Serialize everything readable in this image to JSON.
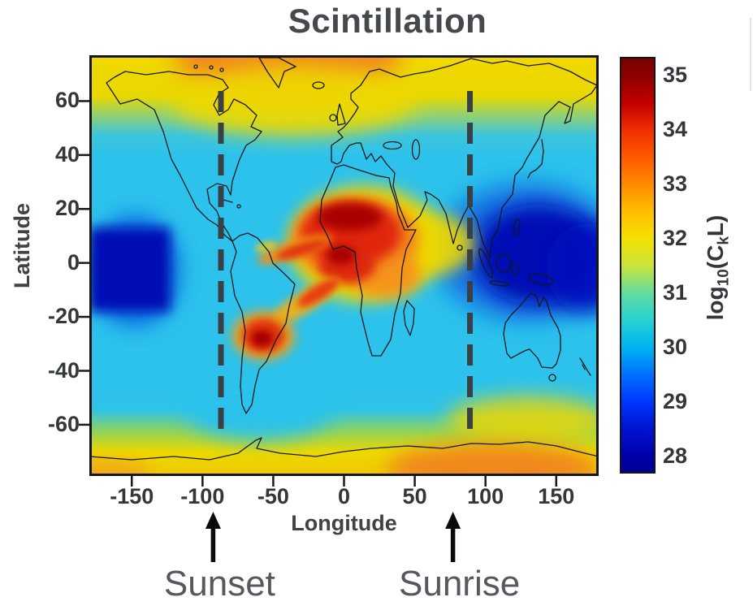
{
  "chart_data": {
    "type": "heatmap",
    "title": "Scintillation",
    "xlabel": "Longitude",
    "ylabel": "Latitude",
    "xlim": [
      -180,
      180
    ],
    "ylim": [
      -79,
      77
    ],
    "x_ticks": [
      -150,
      -100,
      -50,
      0,
      50,
      100,
      150
    ],
    "y_ticks": [
      60,
      40,
      20,
      0,
      -20,
      -40,
      -60
    ],
    "grid": false,
    "background": {
      "color": "#2CC2EC",
      "value": 30.3
    },
    "style": {
      "title_color": "#45484D",
      "tick_color": "#33363B",
      "axis_label_color": "#3F4247",
      "annotation_color": "#55585E",
      "dashed_line_color": "#3A4146",
      "coastline_color": "#14181C",
      "frame_color": "#151515",
      "arrow_color": "#0A0A0A"
    },
    "colorbar": {
      "label_text": "log10(CkL)",
      "label_parts": {
        "prefix": "log",
        "sub1": "10",
        "mid": "(C",
        "sub2": "k",
        "suffix": "L)"
      },
      "ticks": [
        35,
        34,
        33,
        32,
        31,
        30,
        29,
        28
      ],
      "vmin": 28,
      "vmax": 35,
      "gradient_stops": [
        [
          0,
          "#780000"
        ],
        [
          0.044,
          "#8E0000"
        ],
        [
          0.11,
          "#C40000"
        ],
        [
          0.175,
          "#F03000"
        ],
        [
          0.24,
          "#FF5A00"
        ],
        [
          0.306,
          "#FF8C00"
        ],
        [
          0.371,
          "#FFBE00"
        ],
        [
          0.436,
          "#F2E200"
        ],
        [
          0.502,
          "#C8E43C"
        ],
        [
          0.567,
          "#62DC9E"
        ],
        [
          0.632,
          "#28D2D2"
        ],
        [
          0.698,
          "#00B4F0"
        ],
        [
          0.763,
          "#0072FF"
        ],
        [
          0.828,
          "#0038FF"
        ],
        [
          0.894,
          "#0014D2"
        ],
        [
          0.959,
          "#0000AA"
        ],
        [
          1,
          "#000092"
        ]
      ]
    },
    "annotations": [
      {
        "label": "Sunset",
        "line_lon": -87,
        "arrow_lon": -92.5
      },
      {
        "label": "Sunrise",
        "line_lon": 89,
        "arrow_lon": 77
      }
    ],
    "bands": [
      {
        "name": "north-auroral-band",
        "lat_top": 77,
        "lat_bottom": 39,
        "value": 33,
        "stops": [
          [
            0,
            "#F2D800"
          ],
          [
            0.4,
            "#E8D800"
          ],
          [
            0.6,
            "#8CD07A"
          ],
          [
            0.78,
            "#3CC4DC"
          ],
          [
            1,
            "#2CC2EC"
          ]
        ]
      },
      {
        "name": "south-auroral-band",
        "lat_top": -44,
        "lat_bottom": -79,
        "value": 33,
        "stops": [
          [
            0,
            "#2CC2EC"
          ],
          [
            0.3,
            "#2FC3E8"
          ],
          [
            0.55,
            "#9AD44E"
          ],
          [
            0.75,
            "#EED800"
          ],
          [
            1,
            "#EFC800"
          ]
        ]
      }
    ],
    "regions": [
      {
        "name": "north-auroral-orange-cap",
        "shape": "ellipse",
        "lon": -40,
        "lat": 77,
        "rlon": 80,
        "rlat": 16,
        "color": "#F08A1E",
        "blur": 14,
        "value": 33.5
      },
      {
        "name": "north-auroral-yellow-bulge",
        "shape": "ellipse",
        "lon": -35,
        "lat": 60,
        "rlon": 86,
        "rlat": 13,
        "color": "#EED900",
        "blur": 12,
        "opacity": 0.9,
        "value": 32.5
      },
      {
        "name": "south-polar-cyan-dip",
        "shape": "ellipse",
        "lon": -60,
        "lat": -55,
        "rlon": 52,
        "rlat": 10.5,
        "color": "#2CC2EC",
        "blur": 12,
        "value": 30.5
      },
      {
        "name": "south-auroral-yellow-lift",
        "shape": "ellipse",
        "lon": 130,
        "lat": -58,
        "rlon": 57,
        "rlat": 8.5,
        "color": "#EED800",
        "blur": 12,
        "opacity": 0.85,
        "value": 32.5
      },
      {
        "name": "south-auroral-orange-right",
        "shape": "ellipse",
        "lon": 105,
        "lat": -76,
        "rlon": 75,
        "rlat": 9,
        "color": "#F0881E",
        "blur": 12,
        "value": 33.5
      },
      {
        "name": "south-auroral-orange-left",
        "shape": "ellipse",
        "lon": -170,
        "lat": -78,
        "rlon": 34,
        "rlat": 5,
        "color": "#F0A41E",
        "blur": 10,
        "opacity": 0.85,
        "value": 33
      },
      {
        "name": "pacific-west-blue-halo",
        "shape": "ellipse",
        "lon": -148,
        "lat": -3,
        "rlon": 33,
        "rlat": 21,
        "color": "#0554E0",
        "blur": 12,
        "opacity": 0.7,
        "value": 29
      },
      {
        "name": "pacific-west-navy-patch",
        "shape": "rect",
        "lon": -151.5,
        "lat": -2.5,
        "rlon": 28.5,
        "rlat": 15.5,
        "color": "#000CB4",
        "blur": 7,
        "value": 28.2
      },
      {
        "name": "pacific-east-blue-halo",
        "shape": "ellipse",
        "lon": 130,
        "lat": 4,
        "rlon": 66,
        "rlat": 25.5,
        "color": "#0858E0",
        "blur": 14,
        "opacity": 0.75,
        "value": 29
      },
      {
        "name": "pacific-east-navy-core",
        "shape": "ellipse",
        "lon": 137,
        "lat": 3,
        "rlon": 46,
        "rlat": 18.5,
        "color": "#000CB4",
        "blur": 12,
        "value": 28.2
      },
      {
        "name": "pacific-east-navy-edge",
        "shape": "ellipse",
        "lon": 172,
        "lat": -2,
        "rlon": 29,
        "rlat": 16.5,
        "color": "#0010BE",
        "blur": 12,
        "opacity": 0.9,
        "value": 28.2
      },
      {
        "name": "equatorial-yellow-main",
        "shape": "ellipse",
        "lon": 15,
        "lat": 7,
        "rlon": 54,
        "rlat": 21.5,
        "color": "#EED800",
        "blur": 10,
        "value": 32.5
      },
      {
        "name": "equatorial-yellow-east",
        "shape": "ellipse",
        "lon": 60,
        "lat": 7,
        "rlon": 32,
        "rlat": 11.5,
        "color": "#EED800",
        "blur": 10,
        "opacity": 0.9,
        "value": 32.3
      },
      {
        "name": "africa-orange-main",
        "shape": "ellipse",
        "lon": 8,
        "lat": 9,
        "rlon": 45,
        "rlat": 15.5,
        "color": "#F5831E",
        "blur": 8,
        "value": 33.8
      },
      {
        "name": "africa-orange-southeast",
        "shape": "ellipse",
        "lon": 28,
        "lat": -4,
        "rlon": 26,
        "rlat": 9,
        "color": "#F5901E",
        "blur": 8,
        "opacity": 0.9,
        "value": 33.5
      },
      {
        "name": "africa-red-main",
        "shape": "ellipse",
        "lon": 5,
        "lat": 11,
        "rlon": 35.5,
        "rlat": 12,
        "color": "#E02810",
        "blur": 7,
        "value": 34.5
      },
      {
        "name": "africa-red-south-lobe",
        "shape": "ellipse",
        "lon": 2,
        "lat": -1,
        "rlon": 20,
        "rlat": 6.5,
        "color": "#DC2810",
        "blur": 6,
        "value": 34.3
      },
      {
        "name": "africa-darkred-north",
        "shape": "ellipse",
        "lon": 4,
        "lat": 17,
        "rlon": 23,
        "rlat": 5,
        "color": "#A80505",
        "blur": 6,
        "value": 35
      },
      {
        "name": "africa-darkred-south",
        "shape": "ellipse",
        "lon": -2,
        "lat": 3,
        "rlon": 10,
        "rlat": 3.5,
        "color": "#AA0505",
        "blur": 5,
        "value": 35
      },
      {
        "name": "atlantic-wing-orange",
        "shape": "ellipse",
        "lon": -35,
        "lat": 5,
        "rlon": 27.5,
        "rlat": 3.3,
        "rot": -18,
        "color": "#F09018",
        "blur": 5,
        "value": 33.5
      },
      {
        "name": "atlantic-wing-red",
        "shape": "ellipse",
        "lon": -30,
        "lat": 5,
        "rlon": 18.5,
        "rlat": 2.1,
        "rot": -18,
        "color": "#E03510",
        "blur": 4,
        "value": 34.2
      },
      {
        "name": "atlantic-wing-tip",
        "shape": "ellipse",
        "lon": -55,
        "lat": 6,
        "rlon": 8,
        "rlat": 1.8,
        "rot": -15,
        "color": "#F0C818",
        "blur": 4,
        "opacity": 0.9,
        "value": 32.8
      },
      {
        "name": "brazil-tail-orange",
        "shape": "ellipse",
        "lon": -28,
        "lat": -14.5,
        "rlon": 29,
        "rlat": 4,
        "rot": -32,
        "color": "#F0B018",
        "blur": 5,
        "opacity": 0.95,
        "value": 33.2
      },
      {
        "name": "brazil-tail-red",
        "shape": "ellipse",
        "lon": -18,
        "lat": -11,
        "rlon": 17,
        "rlat": 2.7,
        "rot": -32,
        "color": "#E84010",
        "blur": 4,
        "value": 34
      },
      {
        "name": "south-atlantic-halo",
        "shape": "ellipse",
        "lon": -57,
        "lat": -27,
        "rlon": 22,
        "rlat": 9,
        "color": "#F0A018",
        "blur": 7,
        "value": 33.3
      },
      {
        "name": "south-atlantic-red",
        "shape": "ellipse",
        "lon": -57,
        "lat": -27,
        "rlon": 15,
        "rlat": 6.3,
        "color": "#E03010",
        "blur": 5,
        "value": 34.3
      },
      {
        "name": "south-atlantic-darkred-core",
        "shape": "ellipse",
        "lon": -58,
        "lat": -28,
        "rlon": 7.5,
        "rlat": 3,
        "color": "#A80505",
        "blur": 4,
        "value": 35
      }
    ]
  }
}
